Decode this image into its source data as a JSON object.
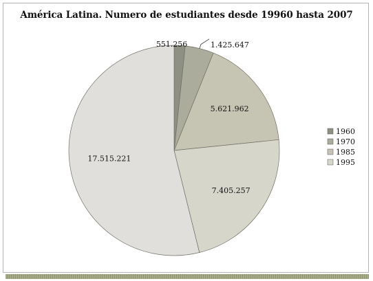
{
  "colors": {
    "1960": "#8e9084",
    "1970": "#abac9b",
    "1985": "#c6c5b3",
    "1995": "#d7d6cb",
    "remaining": "#e0dfdb",
    "stroke": "#6f6f66"
  },
  "chart_data": {
    "type": "pie",
    "title": "América Latina. Numero de estudiantes desde 19960 hasta 2007",
    "slices": [
      {
        "label": "1960",
        "value": 551256,
        "display": "551.256",
        "in_legend": true
      },
      {
        "label": "1970",
        "value": 1425647,
        "display": "1.425.647",
        "in_legend": true
      },
      {
        "label": "1985",
        "value": 5621962,
        "display": "5.621.962",
        "in_legend": true
      },
      {
        "label": "1995",
        "value": 7405257,
        "display": "7.405.257",
        "in_legend": true
      },
      {
        "label": "",
        "value": 17515221,
        "display": "17.515.221",
        "in_legend": false
      }
    ],
    "legend": [
      "1960",
      "1970",
      "1985",
      "1995"
    ],
    "legend_position": "right"
  }
}
